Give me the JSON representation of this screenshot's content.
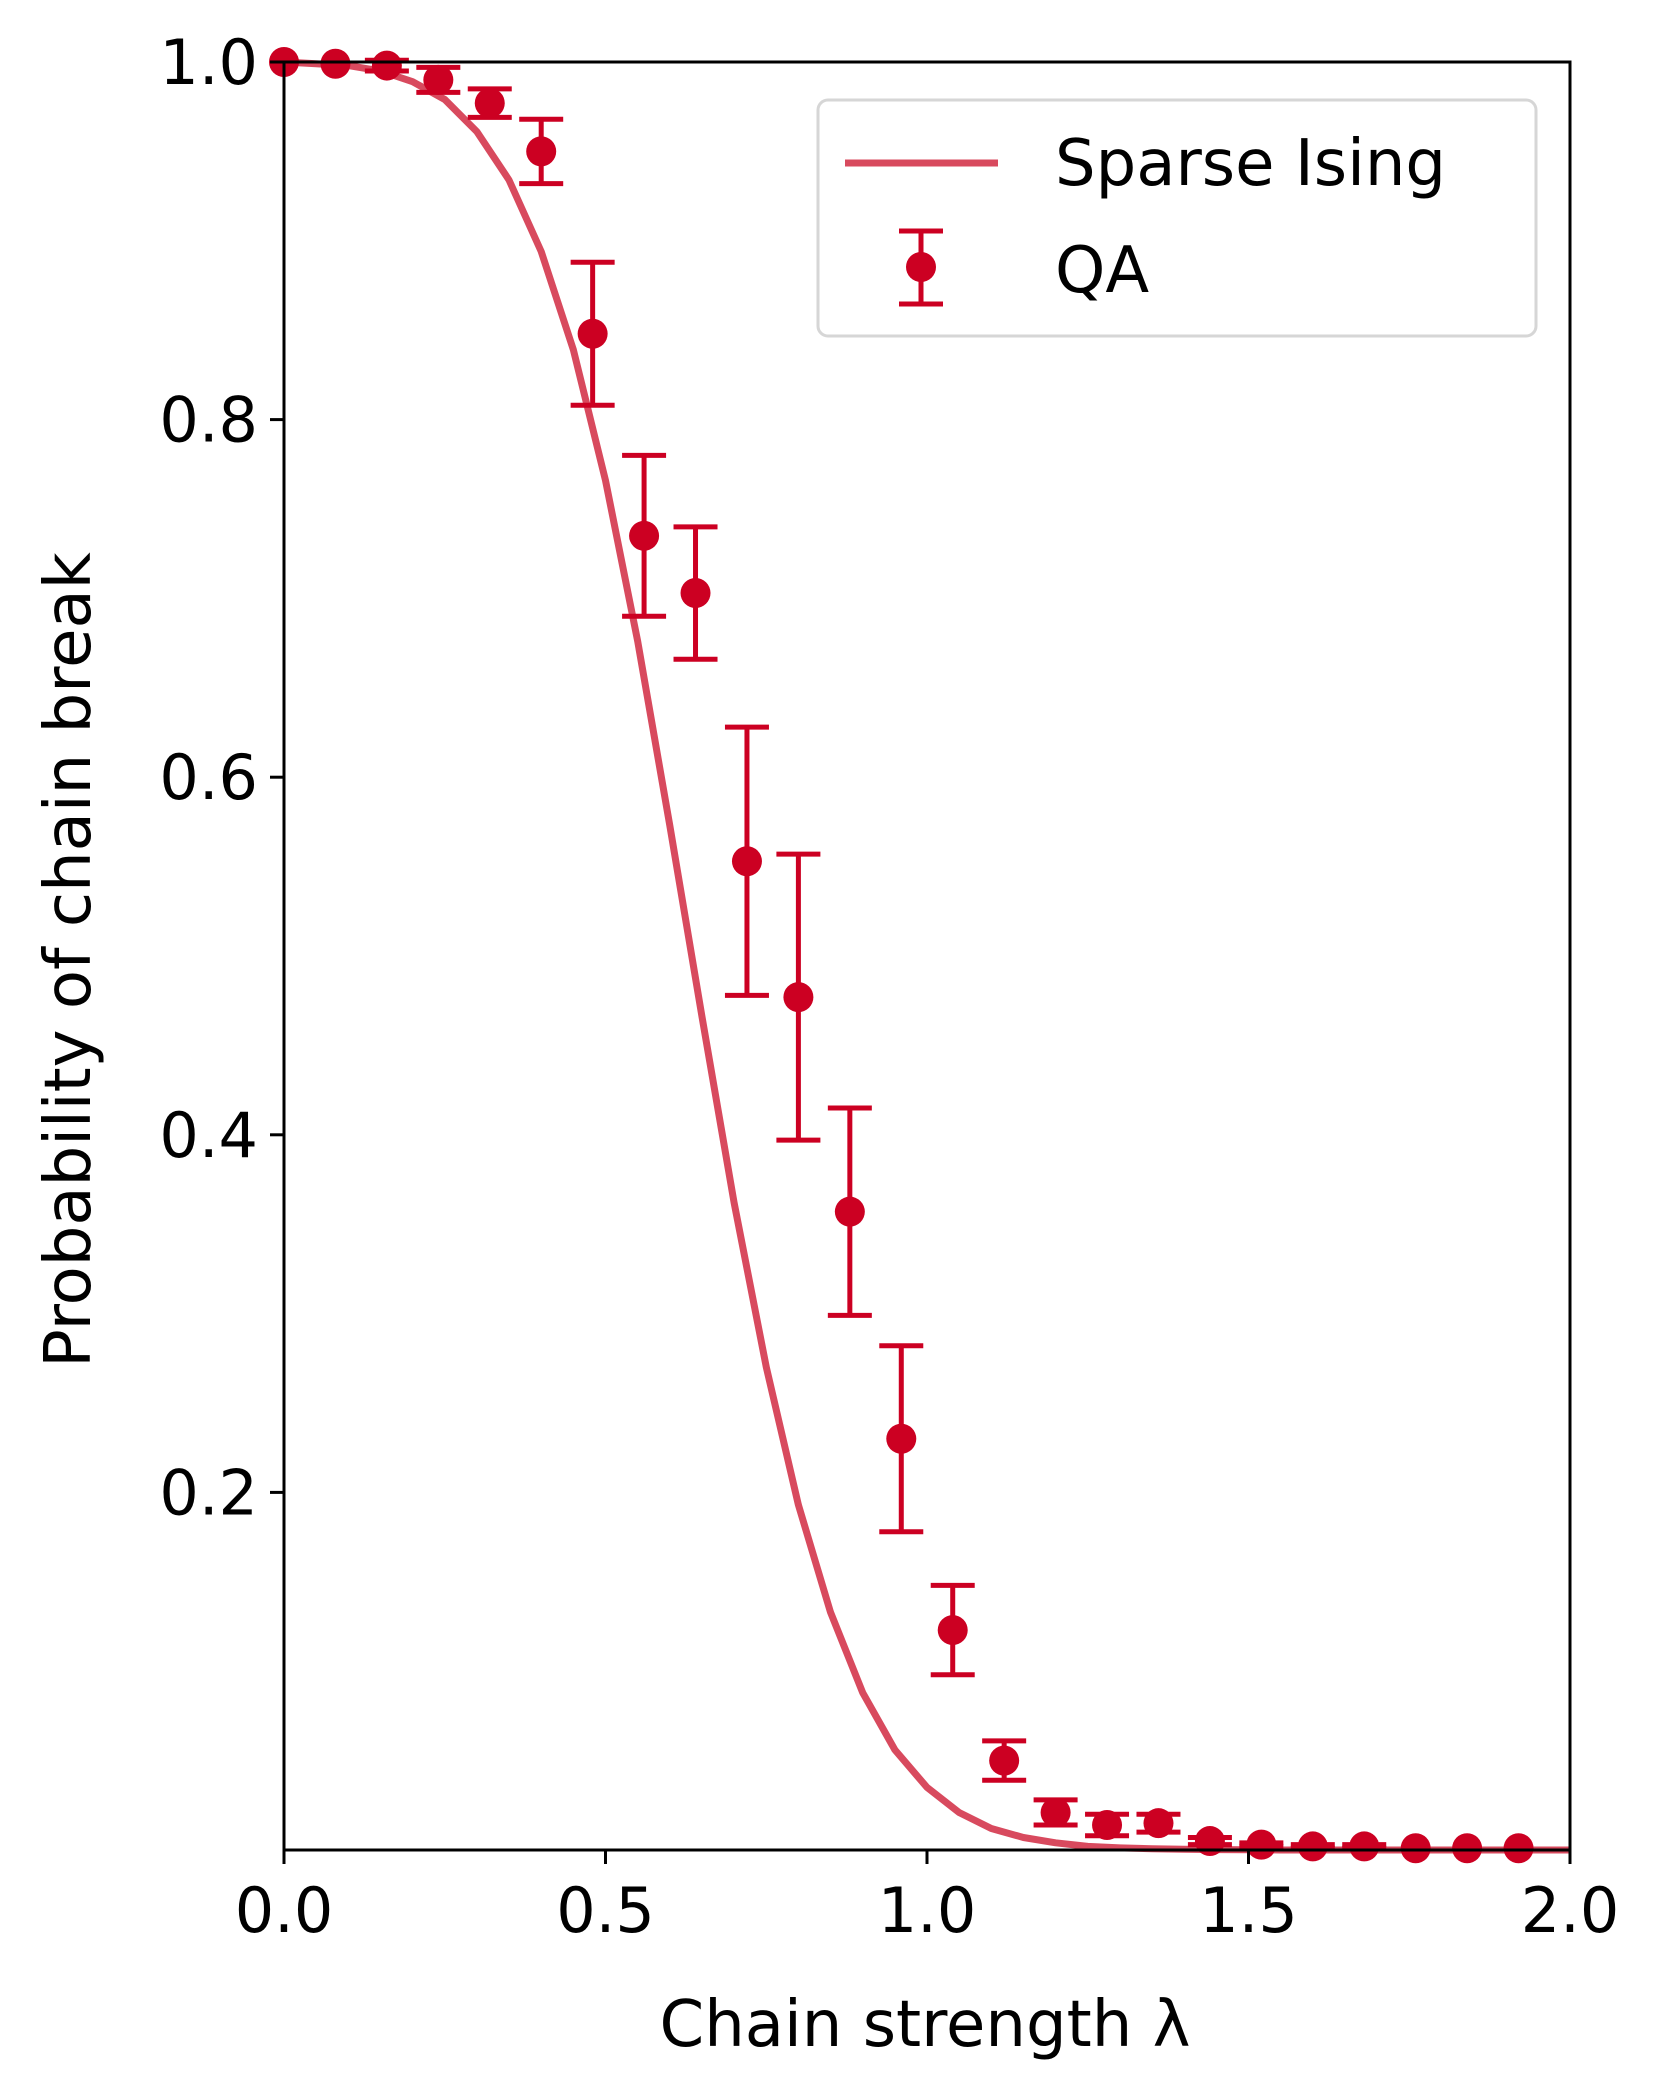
{
  "chart_data": {
    "type": "scatter",
    "title": "",
    "xlabel": "Chain strength λ",
    "ylabel": "Probability of chain break",
    "xlim": [
      0.0,
      2.0
    ],
    "ylim": [
      0.0,
      1.0
    ],
    "xticks": [
      0.0,
      0.5,
      1.0,
      1.5,
      2.0
    ],
    "xtick_labels": [
      "0.0",
      "0.5",
      "1.0",
      "1.5",
      "2.0"
    ],
    "yticks": [
      0.2,
      0.4,
      0.6,
      0.8,
      1.0
    ],
    "ytick_labels": [
      "0.2",
      "0.4",
      "0.6",
      "0.8",
      "1.0"
    ],
    "grid": false,
    "legend_position": "top-right",
    "series": [
      {
        "name": "Sparse Ising",
        "kind": "line",
        "color": "#d84a5e",
        "x": [
          0.0,
          0.05,
          0.1,
          0.15,
          0.2,
          0.25,
          0.3,
          0.35,
          0.4,
          0.45,
          0.5,
          0.55,
          0.6,
          0.65,
          0.7,
          0.75,
          0.8,
          0.85,
          0.9,
          0.95,
          1.0,
          1.05,
          1.1,
          1.15,
          1.2,
          1.25,
          1.3,
          1.35,
          1.4,
          1.45,
          1.5,
          1.55,
          1.6,
          1.65,
          1.7,
          1.75,
          1.8,
          1.85,
          1.9,
          1.95,
          2.0
        ],
        "y": [
          1.0,
          0.999,
          0.998,
          0.995,
          0.989,
          0.979,
          0.961,
          0.934,
          0.894,
          0.839,
          0.766,
          0.676,
          0.573,
          0.466,
          0.362,
          0.27,
          0.193,
          0.133,
          0.088,
          0.056,
          0.035,
          0.021,
          0.012,
          0.007,
          0.004,
          0.002,
          0.0012,
          0.0007,
          0.0004,
          0.0002,
          0.0001,
          0.0,
          0.0,
          0.0,
          0.0,
          0.0,
          0.0,
          0.0,
          0.0,
          0.0,
          0.0
        ]
      },
      {
        "name": "QA",
        "kind": "errorbar",
        "color": "#cc0022",
        "x": [
          0.0,
          0.08,
          0.16,
          0.24,
          0.32,
          0.4,
          0.48,
          0.56,
          0.64,
          0.72,
          0.8,
          0.88,
          0.96,
          1.04,
          1.12,
          1.2,
          1.28,
          1.36,
          1.44,
          1.52,
          1.6,
          1.68,
          1.76,
          1.84,
          1.92
        ],
        "y": [
          1.0,
          0.999,
          0.998,
          0.99,
          0.977,
          0.95,
          0.848,
          0.735,
          0.703,
          0.553,
          0.477,
          0.357,
          0.23,
          0.123,
          0.05,
          0.021,
          0.014,
          0.015,
          0.005,
          0.003,
          0.002,
          0.002,
          0.001,
          0.001,
          0.001
        ],
        "yerr": [
          0.0,
          0.0,
          0.003,
          0.007,
          0.008,
          0.018,
          0.04,
          0.045,
          0.037,
          0.075,
          0.08,
          0.058,
          0.052,
          0.025,
          0.011,
          0.007,
          0.006,
          0.005,
          0.002,
          0.001,
          0.001,
          0.001,
          0.0,
          0.0,
          0.0
        ]
      }
    ]
  }
}
